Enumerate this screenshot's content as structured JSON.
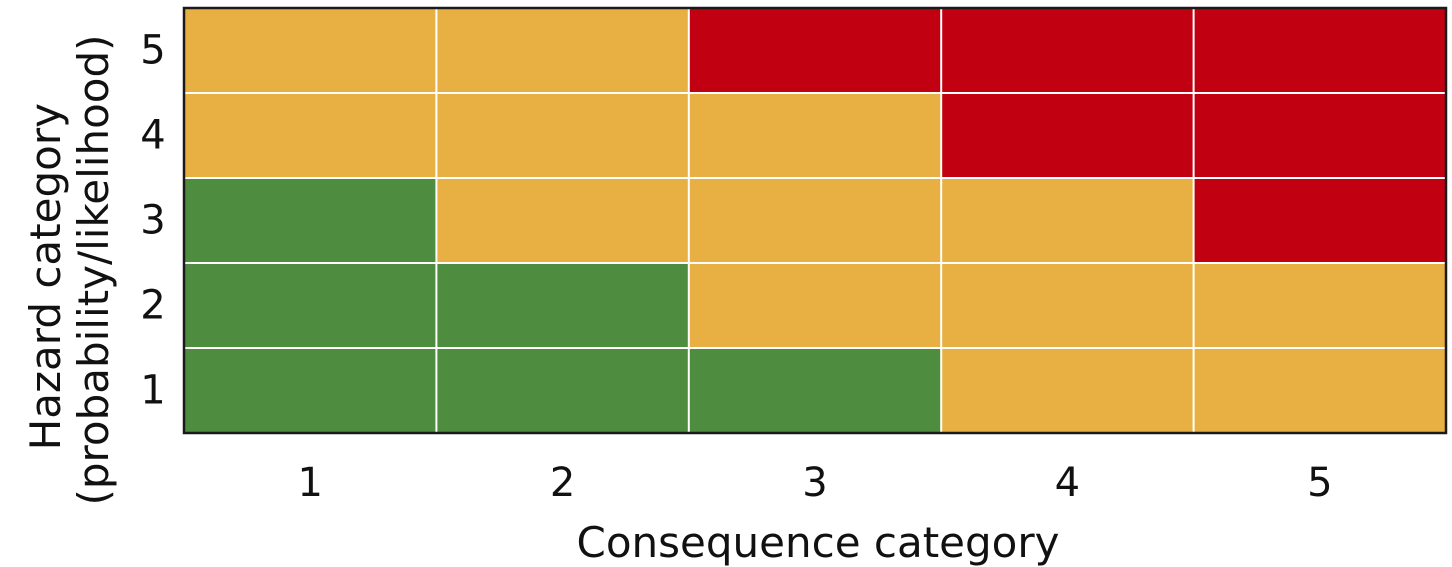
{
  "chart_data": {
    "type": "heatmap",
    "title": "",
    "xlabel": "Consequence category",
    "ylabel_lines": [
      "Hazard category",
      "(probability/likelihood)"
    ],
    "x_categories": [
      "1",
      "2",
      "3",
      "4",
      "5"
    ],
    "y_categories": [
      "1",
      "2",
      "3",
      "4",
      "5"
    ],
    "legend": "none",
    "grid": true,
    "level_colors": {
      "low": "#4e8c3f",
      "medium": "#e8b042",
      "high": "#c10011"
    },
    "cells": [
      [
        "low",
        "low",
        "low",
        "medium",
        "medium"
      ],
      [
        "low",
        "low",
        "medium",
        "medium",
        "medium"
      ],
      [
        "low",
        "medium",
        "medium",
        "medium",
        "high"
      ],
      [
        "medium",
        "medium",
        "medium",
        "high",
        "high"
      ],
      [
        "medium",
        "medium",
        "high",
        "high",
        "high"
      ]
    ]
  }
}
